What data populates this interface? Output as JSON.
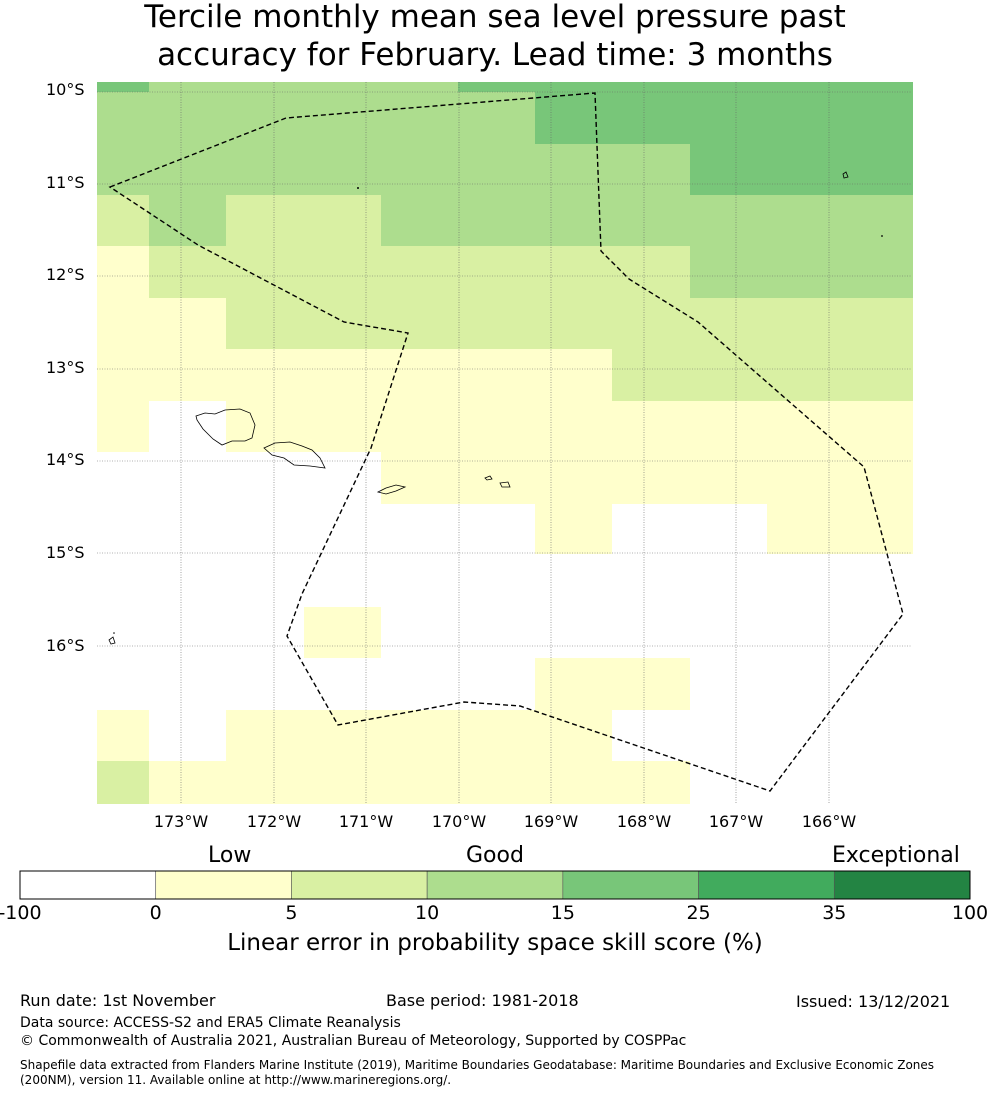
{
  "title_line1": "Tercile monthly mean sea level pressure past",
  "title_line2": "accuracy for February. Lead time: 3 months",
  "map": {
    "lat_labels": [
      "10°S",
      "11°S",
      "12°S",
      "13°S",
      "14°S",
      "15°S",
      "16°S"
    ],
    "lon_labels": [
      "173°W",
      "172°W",
      "171°W",
      "170°W",
      "169°W",
      "168°W",
      "167°W",
      "166°W"
    ],
    "colors": {
      "lt0": "#ffffff",
      "c0_5": "#ffffcc",
      "c5_10": "#d9f0a3",
      "c10_15": "#addd8e",
      "c15_25": "#78c679",
      "c25_35": "#41ab5d",
      "c35_100": "#238443"
    }
  },
  "legend": {
    "categories": [
      "Low",
      "Good",
      "Exceptional"
    ],
    "ticks": [
      "-100",
      "0",
      "5",
      "10",
      "15",
      "25",
      "35",
      "100"
    ],
    "title": "Linear error in probability space skill score (%)"
  },
  "footer": {
    "run_date": "Run date: 1st November",
    "base_period": "Base period: 1981-2018",
    "issued": "Issued: 13/12/2021",
    "data_source": "Data source: ACCESS-S2 and ERA5 Climate Reanalysis",
    "copyright": "© Commonwealth of Australia 2021, Australian Bureau of Meteorology, Supported by COSPPac",
    "shapefile_line1": "Shapefile data extracted from Flanders Marine Institute (2019), Maritime Boundaries Geodatabase: Maritime Boundaries and Exclusive Economic Zones",
    "shapefile_line2": "(200NM), version 11. Available online at http://www.marineregions.org/."
  }
}
